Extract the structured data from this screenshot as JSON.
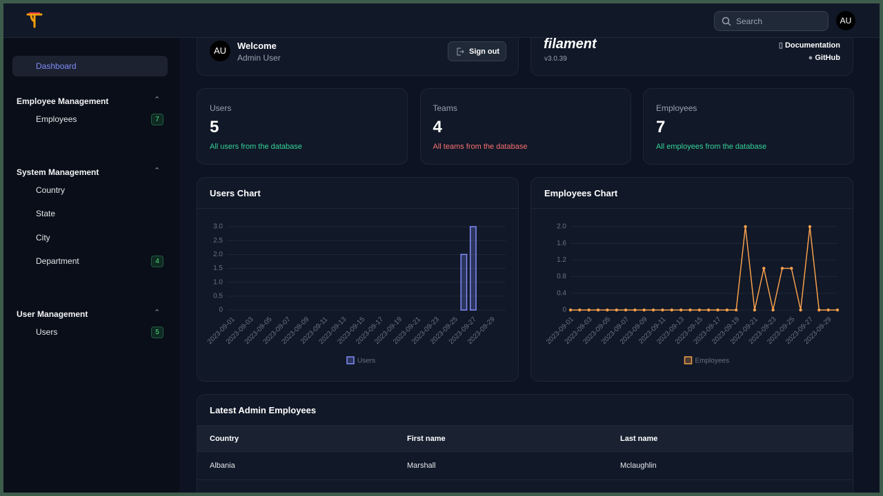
{
  "topbar": {
    "search_placeholder": "Search",
    "avatar": "AU"
  },
  "sidebar": {
    "items": [
      {
        "label": "Dashboard"
      }
    ],
    "groups": [
      {
        "title": "Employee Management",
        "items": [
          {
            "label": "Employees",
            "badge": 7
          }
        ]
      },
      {
        "title": "System Management",
        "items": [
          {
            "label": "Country"
          },
          {
            "label": "State"
          },
          {
            "label": "City"
          },
          {
            "label": "Department",
            "badge": 4
          }
        ]
      },
      {
        "title": "User Management",
        "items": [
          {
            "label": "Users",
            "badge": 5
          }
        ]
      }
    ]
  },
  "welcome": {
    "avatar": "AU",
    "title": "Welcome",
    "name": "Admin User",
    "button": "Sign out"
  },
  "info": {
    "brand": "filament",
    "version": "v3.0.39",
    "links": [
      "Documentation",
      "GitHub"
    ]
  },
  "stats": [
    {
      "label": "Users",
      "value": 5,
      "description": "All users from the database"
    },
    {
      "label": "Teams",
      "value": 4,
      "description": "All teams from the database"
    },
    {
      "label": "Employees",
      "value": 7,
      "description": "All employees from the database"
    }
  ],
  "chart_data": [
    {
      "type": "bar",
      "title": "Users Chart",
      "categories": [
        "2023-09-01",
        null,
        "2023-09-03",
        null,
        "2023-09-05",
        null,
        "2023-09-07",
        null,
        "2023-09-09",
        null,
        "2023-09-11",
        null,
        "2023-09-13",
        null,
        "2023-09-15",
        null,
        "2023-09-17",
        null,
        "2023-09-19",
        null,
        "2023-09-21",
        null,
        "2023-09-23",
        null,
        "2023-09-25",
        null,
        "2023-09-27",
        null,
        "2023-09-29",
        null
      ],
      "series": [
        {
          "name": "Users",
          "color": "#818cf8",
          "values": [
            0,
            0,
            0,
            0,
            0,
            0,
            0,
            0,
            0,
            0,
            0,
            0,
            0,
            0,
            0,
            0,
            0,
            0,
            0,
            0,
            0,
            0,
            0,
            0,
            0,
            2,
            3,
            0,
            0,
            0
          ]
        }
      ],
      "ylim": [
        0,
        3
      ],
      "yticks": [
        0,
        0.5,
        {
          "value": 1,
          "label": "1.0"
        },
        1.5,
        {
          "value": 2,
          "label": "2.0"
        },
        2.5,
        {
          "value": 3,
          "label": "3.0"
        }
      ],
      "grid": true
    },
    {
      "type": "line",
      "title": "Employees Chart",
      "categories": [
        "2023-09-01",
        null,
        "2023-09-03",
        null,
        "2023-09-05",
        null,
        "2023-09-07",
        null,
        "2023-09-09",
        null,
        "2023-09-11",
        null,
        "2023-09-13",
        null,
        "2023-09-15",
        null,
        "2023-09-17",
        null,
        "2023-09-19",
        null,
        "2023-09-21",
        null,
        "2023-09-23",
        null,
        "2023-09-25",
        null,
        "2023-09-27",
        null,
        "2023-09-29",
        null
      ],
      "series": [
        {
          "name": "Employees",
          "color": "#f6a04d",
          "values": [
            0,
            0,
            0,
            0,
            0,
            0,
            0,
            0,
            0,
            0,
            0,
            0,
            0,
            0,
            0,
            0,
            0,
            0,
            0,
            2,
            0,
            1,
            0,
            1,
            1,
            0,
            2,
            0,
            0,
            0
          ]
        }
      ],
      "ylim": [
        0,
        2
      ],
      "yticks": [
        0,
        0.4,
        0.8,
        1.2,
        1.6,
        {
          "value": 2,
          "label": "2.0"
        }
      ],
      "grid": true
    }
  ],
  "table": {
    "title": "Latest Admin Employees",
    "columns": [
      "Country",
      "First name",
      "Last name"
    ],
    "rows": [
      [
        "Albania",
        "Marshall",
        "Mclaughlin"
      ]
    ]
  }
}
